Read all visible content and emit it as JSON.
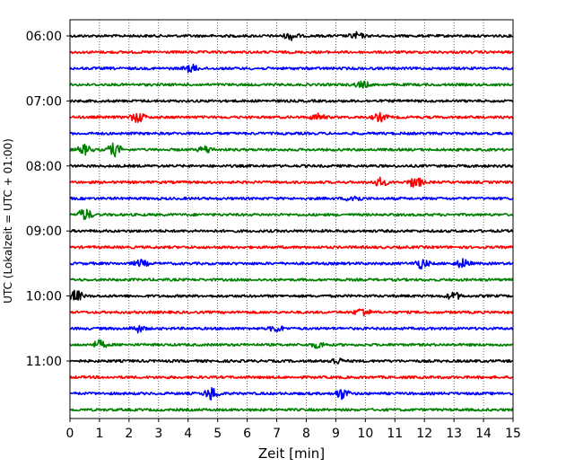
{
  "chart_data": {
    "type": "line",
    "title": "",
    "xlabel": "Zeit  [min]",
    "ylabel": "UTC (Lokalzeit = UTC + 01:00)",
    "xlim": [
      0,
      15
    ],
    "xticks": [
      0,
      1,
      2,
      3,
      4,
      5,
      6,
      7,
      8,
      9,
      10,
      11,
      12,
      13,
      14,
      15
    ],
    "x_grid": "dotted vertical lines at each minute",
    "y_tick_labels": [
      "06:00",
      "07:00",
      "08:00",
      "09:00",
      "10:00",
      "11:00"
    ],
    "y_tick_rows": [
      0,
      4,
      8,
      12,
      16,
      20
    ],
    "row_interval_minutes": 15,
    "rows": [
      {
        "start": "06:00",
        "color": "#000000"
      },
      {
        "start": "06:15",
        "color": "#ff0000"
      },
      {
        "start": "06:30",
        "color": "#0000ff"
      },
      {
        "start": "06:45",
        "color": "#008000"
      },
      {
        "start": "07:00",
        "color": "#000000"
      },
      {
        "start": "07:15",
        "color": "#ff0000"
      },
      {
        "start": "07:30",
        "color": "#0000ff"
      },
      {
        "start": "07:45",
        "color": "#008000"
      },
      {
        "start": "08:00",
        "color": "#000000"
      },
      {
        "start": "08:15",
        "color": "#ff0000"
      },
      {
        "start": "08:30",
        "color": "#0000ff"
      },
      {
        "start": "08:45",
        "color": "#008000"
      },
      {
        "start": "09:00",
        "color": "#000000"
      },
      {
        "start": "09:15",
        "color": "#ff0000"
      },
      {
        "start": "09:30",
        "color": "#0000ff"
      },
      {
        "start": "09:45",
        "color": "#008000"
      },
      {
        "start": "10:00",
        "color": "#000000"
      },
      {
        "start": "10:15",
        "color": "#ff0000"
      },
      {
        "start": "10:30",
        "color": "#0000ff"
      },
      {
        "start": "10:45",
        "color": "#008000"
      },
      {
        "start": "11:00",
        "color": "#000000"
      },
      {
        "start": "11:15",
        "color": "#ff0000"
      },
      {
        "start": "11:30",
        "color": "#0000ff"
      },
      {
        "start": "11:45",
        "color": "#008000"
      }
    ],
    "bursts": [
      {
        "row": 0,
        "min": 7.5,
        "amp": 1.8
      },
      {
        "row": 0,
        "min": 9.7,
        "amp": 1.5
      },
      {
        "row": 2,
        "min": 4.1,
        "amp": 1.9
      },
      {
        "row": 3,
        "min": 9.9,
        "amp": 1.6
      },
      {
        "row": 5,
        "min": 2.3,
        "amp": 2.6
      },
      {
        "row": 5,
        "min": 8.4,
        "amp": 1.6
      },
      {
        "row": 5,
        "min": 10.5,
        "amp": 2.0
      },
      {
        "row": 7,
        "min": 0.5,
        "amp": 2.4
      },
      {
        "row": 7,
        "min": 1.5,
        "amp": 3.2
      },
      {
        "row": 7,
        "min": 4.6,
        "amp": 1.8
      },
      {
        "row": 9,
        "min": 10.5,
        "amp": 2.0
      },
      {
        "row": 9,
        "min": 11.7,
        "amp": 2.8
      },
      {
        "row": 10,
        "min": 9.6,
        "amp": 1.8
      },
      {
        "row": 11,
        "min": 0.5,
        "amp": 3.0
      },
      {
        "row": 14,
        "min": 2.4,
        "amp": 1.6
      },
      {
        "row": 14,
        "min": 11.9,
        "amp": 2.4
      },
      {
        "row": 14,
        "min": 13.3,
        "amp": 2.2
      },
      {
        "row": 16,
        "min": 0.2,
        "amp": 2.8
      },
      {
        "row": 16,
        "min": 13.0,
        "amp": 1.8
      },
      {
        "row": 17,
        "min": 9.9,
        "amp": 2.2
      },
      {
        "row": 18,
        "min": 2.3,
        "amp": 1.6
      },
      {
        "row": 18,
        "min": 7.0,
        "amp": 1.5
      },
      {
        "row": 19,
        "min": 1.0,
        "amp": 2.0
      },
      {
        "row": 19,
        "min": 8.4,
        "amp": 1.5
      },
      {
        "row": 20,
        "min": 9.0,
        "amp": 1.6
      },
      {
        "row": 22,
        "min": 4.8,
        "amp": 3.2
      },
      {
        "row": 22,
        "min": 9.2,
        "amp": 2.6
      }
    ]
  }
}
